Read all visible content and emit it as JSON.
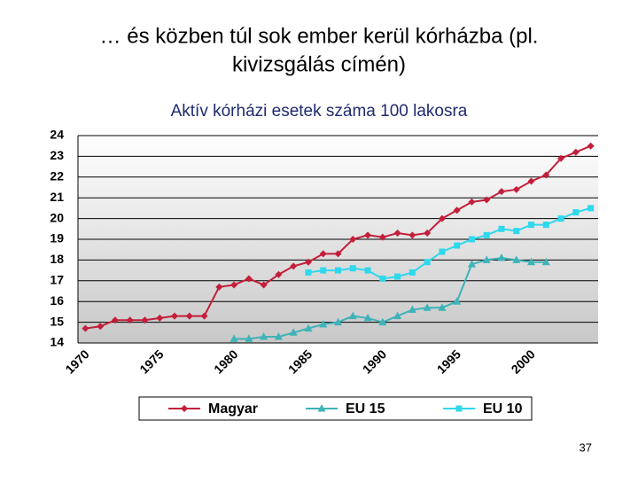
{
  "slide": {
    "title_lines": [
      "… és közben túl sok ember kerül kórházba (pl.",
      "kivizsgálás címén)"
    ],
    "page_number": "37"
  },
  "chart_data": {
    "type": "line",
    "title": "Aktív kórházi esetek száma 100 lakosra",
    "categories": [
      "1970",
      null,
      null,
      null,
      null,
      "1975",
      null,
      null,
      null,
      null,
      "1980",
      null,
      null,
      null,
      null,
      "1985",
      null,
      null,
      null,
      null,
      "1990",
      null,
      null,
      null,
      null,
      "1995",
      null,
      null,
      null,
      null,
      "2000",
      null,
      null,
      null,
      null
    ],
    "series": [
      {
        "name": "Magyar",
        "color": "#c41e3a",
        "marker": "diamond",
        "values": [
          14.7,
          14.8,
          15.1,
          15.1,
          15.1,
          15.2,
          15.3,
          15.3,
          15.3,
          16.7,
          16.8,
          17.1,
          16.8,
          17.3,
          17.7,
          17.9,
          18.3,
          18.3,
          19.0,
          19.2,
          19.1,
          19.3,
          19.2,
          19.3,
          20.0,
          20.4,
          20.8,
          20.9,
          21.3,
          21.4,
          21.8,
          22.1,
          22.9,
          23.2,
          23.5
        ]
      },
      {
        "name": "EU 15",
        "color": "#3fb3b8",
        "marker": "triangle",
        "values": [
          null,
          null,
          null,
          null,
          null,
          null,
          null,
          null,
          null,
          null,
          14.2,
          14.2,
          14.3,
          14.3,
          14.5,
          14.7,
          14.9,
          15.0,
          15.3,
          15.2,
          15.0,
          15.3,
          15.6,
          15.7,
          15.7,
          16.0,
          17.8,
          18.0,
          18.1,
          18.0,
          17.9,
          17.9,
          null,
          null,
          null
        ]
      },
      {
        "name": "EU 10",
        "color": "#2fd8ec",
        "marker": "square",
        "values": [
          null,
          null,
          null,
          null,
          null,
          null,
          null,
          null,
          null,
          null,
          null,
          null,
          null,
          null,
          null,
          17.4,
          17.5,
          17.5,
          17.6,
          17.5,
          17.1,
          17.2,
          17.4,
          17.9,
          18.4,
          18.7,
          19.0,
          19.2,
          19.5,
          19.4,
          19.7,
          19.7,
          20.0,
          20.3,
          20.5
        ]
      }
    ],
    "ylim": [
      14,
      24
    ],
    "yticks": [
      14,
      15,
      16,
      17,
      18,
      19,
      20,
      21,
      22,
      23,
      24
    ],
    "grid": true
  }
}
